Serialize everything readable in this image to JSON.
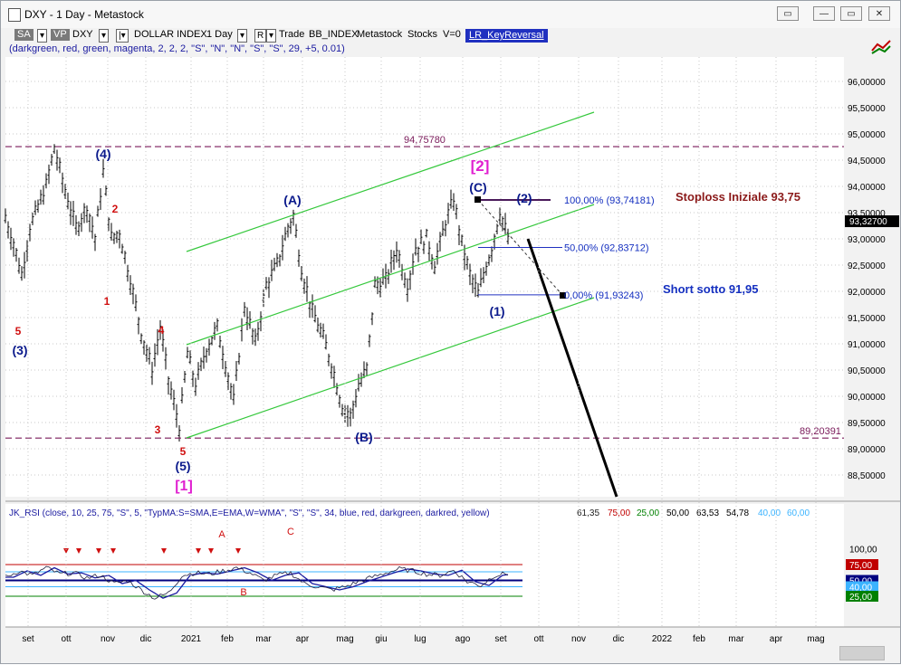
{
  "window": {
    "title": "DXY - 1 Day - Metastock",
    "buttons": [
      "▭",
      "—",
      "▭",
      "✕"
    ]
  },
  "toolbar": {
    "sa": "SA",
    "vp": "VP",
    "symbol": "DXY",
    "name": "DOLLAR INDEX",
    "period": "1 Day",
    "r": "R",
    "trade": "Trade",
    "bb": "BB_INDEX",
    "ms": "Metastock",
    "stocks": "Stocks",
    "v": "V=0",
    "indicator": "LR_KeyReversal"
  },
  "params_line": "(darkgreen, red, green, magenta, 2, 2, 2, \"S\", \"N\", \"N\", \"S\", \"S\", 29, +5, 0.01)",
  "colors": {
    "background": "#ffffff",
    "price": "#000000",
    "channel": "#35c83c",
    "magenta_line": "#7a1a5a",
    "wave_blue": "#0b1a8c",
    "wave_red": "#d01010",
    "wave_magenta": "#e020d0",
    "stop": "#8b1a1a",
    "short": "#1530c0"
  },
  "chart_data": {
    "type": "line",
    "title": "DXY - 1 Day",
    "price_axis": [
      "96,00000",
      "95,50000",
      "95,00000",
      "94,50000",
      "94,00000",
      "93,50000",
      "93,00000",
      "92,50000",
      "92,00000",
      "91,50000",
      "91,00000",
      "90,50000",
      "90,00000",
      "89,50000",
      "89,00000",
      "88,50000"
    ],
    "last_price": "93,32700",
    "x_labels": [
      "set",
      "ott",
      "nov",
      "dic",
      "2021",
      "feb",
      "mar",
      "apr",
      "mag",
      "giu",
      "lug",
      "ago",
      "set",
      "ott",
      "nov",
      "dic",
      "2022",
      "feb",
      "mar",
      "apr",
      "mag"
    ],
    "series_anchors": [
      {
        "i": 0,
        "v": 93.4
      },
      {
        "i": 3,
        "v": 92.9
      },
      {
        "i": 6,
        "v": 92.3
      },
      {
        "i": 9,
        "v": 93.2
      },
      {
        "i": 12,
        "v": 93.6
      },
      {
        "i": 15,
        "v": 94.0
      },
      {
        "i": 18,
        "v": 94.72
      },
      {
        "i": 22,
        "v": 93.9
      },
      {
        "i": 26,
        "v": 93.2
      },
      {
        "i": 30,
        "v": 93.6
      },
      {
        "i": 33,
        "v": 93.0
      },
      {
        "i": 36,
        "v": 94.25
      },
      {
        "i": 39,
        "v": 93.0
      },
      {
        "i": 42,
        "v": 93.1
      },
      {
        "i": 46,
        "v": 92.2
      },
      {
        "i": 50,
        "v": 91.2
      },
      {
        "i": 54,
        "v": 90.5
      },
      {
        "i": 57,
        "v": 91.3
      },
      {
        "i": 60,
        "v": 90.3
      },
      {
        "i": 64,
        "v": 89.4
      },
      {
        "i": 67,
        "v": 90.8
      },
      {
        "i": 70,
        "v": 90.2
      },
      {
        "i": 74,
        "v": 90.9
      },
      {
        "i": 78,
        "v": 91.3
      },
      {
        "i": 81,
        "v": 90.6
      },
      {
        "i": 84,
        "v": 89.9
      },
      {
        "i": 88,
        "v": 91.7
      },
      {
        "i": 92,
        "v": 91.0
      },
      {
        "i": 96,
        "v": 92.1
      },
      {
        "i": 100,
        "v": 92.5
      },
      {
        "i": 104,
        "v": 93.2
      },
      {
        "i": 106,
        "v": 93.42
      },
      {
        "i": 109,
        "v": 92.4
      },
      {
        "i": 113,
        "v": 91.6
      },
      {
        "i": 117,
        "v": 91.1
      },
      {
        "i": 120,
        "v": 90.6
      },
      {
        "i": 124,
        "v": 89.8
      },
      {
        "i": 127,
        "v": 89.6
      },
      {
        "i": 130,
        "v": 90.2
      },
      {
        "i": 133,
        "v": 90.5
      },
      {
        "i": 136,
        "v": 92.1
      },
      {
        "i": 140,
        "v": 92.2
      },
      {
        "i": 144,
        "v": 92.8
      },
      {
        "i": 148,
        "v": 92.1
      },
      {
        "i": 151,
        "v": 92.8
      },
      {
        "i": 155,
        "v": 93.0
      },
      {
        "i": 158,
        "v": 92.5
      },
      {
        "i": 162,
        "v": 93.3
      },
      {
        "i": 165,
        "v": 93.74
      },
      {
        "i": 168,
        "v": 92.9
      },
      {
        "i": 171,
        "v": 92.3
      },
      {
        "i": 174,
        "v": 91.93
      },
      {
        "i": 177,
        "v": 92.5
      },
      {
        "i": 179,
        "v": 92.8
      },
      {
        "i": 182,
        "v": 93.5
      },
      {
        "i": 185,
        "v": 93.0
      }
    ],
    "levels": [
      {
        "label": "94,75780",
        "value": 94.7578
      },
      {
        "label": "89,20391",
        "value": 89.20391
      }
    ],
    "fib": [
      {
        "label": "100,00% (93,74181)",
        "value": 93.74181
      },
      {
        "label": "50,00% (92,83712)",
        "value": 92.83712
      },
      {
        "label": "0,00% (91,93243)",
        "value": 91.93243
      }
    ],
    "annotations": {
      "stop": "Stoploss Iniziale 93,75",
      "short": "Short sotto 91,95"
    },
    "waves": [
      {
        "t": "(4)",
        "c": "wave_blue"
      },
      {
        "t": "2",
        "c": "wave_red"
      },
      {
        "t": "1",
        "c": "wave_red"
      },
      {
        "t": "5",
        "c": "wave_red"
      },
      {
        "t": "(3)",
        "c": "wave_blue"
      },
      {
        "t": "4",
        "c": "wave_red"
      },
      {
        "t": "3",
        "c": "wave_red"
      },
      {
        "t": "5",
        "c": "wave_red"
      },
      {
        "t": "(5)",
        "c": "wave_blue"
      },
      {
        "t": "[1]",
        "c": "wave_magenta"
      },
      {
        "t": "(A)",
        "c": "wave_blue"
      },
      {
        "t": "(B)",
        "c": "wave_blue"
      },
      {
        "t": "[2]",
        "c": "wave_magenta"
      },
      {
        "t": "(C)",
        "c": "wave_blue"
      },
      {
        "t": "(2)",
        "c": "wave_blue"
      },
      {
        "t": "(1)",
        "c": "wave_blue"
      }
    ],
    "rsi": {
      "header": "JK_RSI   (close, 10, 25, 75, \"S\", 5, \"TypMA:S=SMA,E=EMA,W=WMA\", \"S\", \"S\", 34, blue, red, darkgreen, darkred, yellow)",
      "values": [
        "61,35",
        "75,00",
        "25,00",
        "50,00",
        "63,53",
        "54,78",
        "40,00",
        "60,00"
      ],
      "value_colors": [
        "#222",
        "#c00000",
        "#008000",
        "#000",
        "#000",
        "#000",
        "#3bb3ff",
        "#3bb3ff"
      ],
      "axis": [
        "100,00",
        "75,00",
        "50,00",
        "40,00",
        "25,00"
      ],
      "letters": [
        "A",
        "C",
        "B"
      ],
      "rsi_anchors": [
        {
          "i": 0,
          "v": 55
        },
        {
          "i": 5,
          "v": 65
        },
        {
          "i": 10,
          "v": 58
        },
        {
          "i": 15,
          "v": 70
        },
        {
          "i": 20,
          "v": 60
        },
        {
          "i": 25,
          "v": 62
        },
        {
          "i": 30,
          "v": 54
        },
        {
          "i": 35,
          "v": 58
        },
        {
          "i": 40,
          "v": 45
        },
        {
          "i": 45,
          "v": 50
        },
        {
          "i": 50,
          "v": 35
        },
        {
          "i": 55,
          "v": 22
        },
        {
          "i": 60,
          "v": 30
        },
        {
          "i": 65,
          "v": 58
        },
        {
          "i": 70,
          "v": 62
        },
        {
          "i": 75,
          "v": 60
        },
        {
          "i": 80,
          "v": 65
        },
        {
          "i": 85,
          "v": 70
        },
        {
          "i": 90,
          "v": 62
        },
        {
          "i": 95,
          "v": 50
        },
        {
          "i": 100,
          "v": 58
        },
        {
          "i": 105,
          "v": 62
        },
        {
          "i": 110,
          "v": 45
        },
        {
          "i": 115,
          "v": 40
        },
        {
          "i": 120,
          "v": 35
        },
        {
          "i": 125,
          "v": 40
        },
        {
          "i": 130,
          "v": 48
        },
        {
          "i": 135,
          "v": 55
        },
        {
          "i": 140,
          "v": 62
        },
        {
          "i": 145,
          "v": 68
        },
        {
          "i": 150,
          "v": 65
        },
        {
          "i": 155,
          "v": 60
        },
        {
          "i": 160,
          "v": 58
        },
        {
          "i": 165,
          "v": 66
        },
        {
          "i": 170,
          "v": 48
        },
        {
          "i": 175,
          "v": 42
        },
        {
          "i": 180,
          "v": 58
        },
        {
          "i": 185,
          "v": 61
        }
      ]
    }
  }
}
